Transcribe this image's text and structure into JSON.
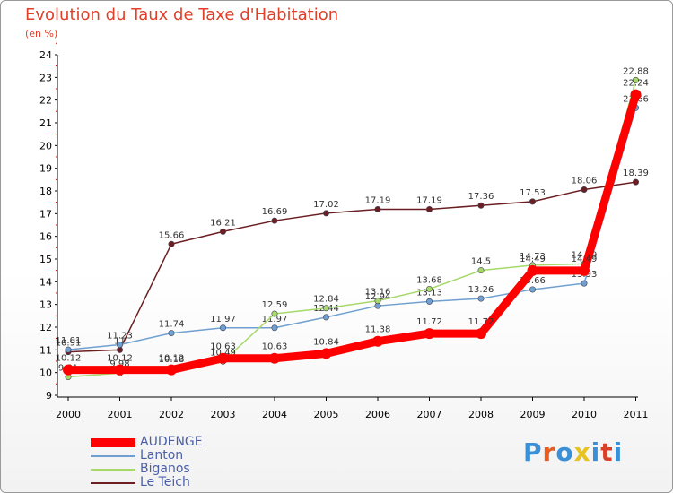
{
  "header": {
    "title": "Evolution du Taux de Taxe d'Habitation",
    "subtitle": "(en %)"
  },
  "logo": {
    "text": "Proxiti",
    "colors": [
      "#3a8fd6",
      "#e85d1f",
      "#3a8fd6",
      "#e8c21f",
      "#3a8fd6",
      "#d9402a",
      "#3a8fd6"
    ]
  },
  "chart_data": {
    "type": "line",
    "x": [
      "2000",
      "2001",
      "2002",
      "2003",
      "2004",
      "2005",
      "2006",
      "2007",
      "2008",
      "2009",
      "2010",
      "2011"
    ],
    "ylim": [
      9,
      24
    ],
    "yticks": [
      9,
      10,
      11,
      12,
      13,
      14,
      15,
      16,
      17,
      18,
      19,
      20,
      21,
      22,
      23,
      24
    ],
    "grid": false,
    "legend": "bottom-left",
    "series": [
      {
        "name": "Le Teich",
        "color": "#6b1f23",
        "values": [
          10.91,
          11.0,
          15.66,
          16.21,
          16.69,
          17.02,
          17.19,
          17.19,
          17.36,
          17.53,
          18.06,
          18.39
        ],
        "labels": [
          "10.91",
          "11",
          "15.66",
          "16.21",
          "16.69",
          "17.02",
          "17.19",
          "17.19",
          "17.36",
          "17.53",
          "18.06",
          "18.39"
        ]
      },
      {
        "name": "Lanton",
        "color": "#6fa0d0",
        "values": [
          11.01,
          11.23,
          11.74,
          11.97,
          11.97,
          12.44,
          12.94,
          13.13,
          13.26,
          13.66,
          13.93,
          21.66
        ],
        "labels": [
          "11.01",
          "11.23",
          "11.74",
          "11.97",
          "11.97",
          "12.44",
          "12.94",
          "13.13",
          "13.26",
          "13.66",
          "13.93",
          "21.66"
        ]
      },
      {
        "name": "Biganos",
        "color": "#a6d96a",
        "values": [
          9.81,
          9.98,
          10.18,
          10.49,
          12.59,
          12.84,
          13.16,
          13.68,
          14.5,
          14.73,
          14.79,
          22.88
        ],
        "labels": [
          "9.81",
          "9.98",
          "10.18",
          "10.49",
          "12.59",
          "12.84",
          "13.16",
          "13.68",
          "14.5",
          "14.73",
          "14.79",
          "22.88"
        ]
      },
      {
        "name": "AUDENGE",
        "color": "#ff0000",
        "values": [
          10.12,
          10.12,
          10.12,
          10.63,
          10.63,
          10.84,
          11.38,
          11.72,
          11.72,
          14.49,
          14.49,
          22.24
        ],
        "labels": [
          "10.12",
          "10.12",
          "10.12",
          "10.63",
          "10.63",
          "10.84",
          "11.38",
          "11.72",
          "11.72",
          "14.49",
          "14.49",
          "22.24"
        ]
      }
    ],
    "legend_order": [
      "AUDENGE",
      "Lanton",
      "Biganos",
      "Le Teich"
    ]
  }
}
